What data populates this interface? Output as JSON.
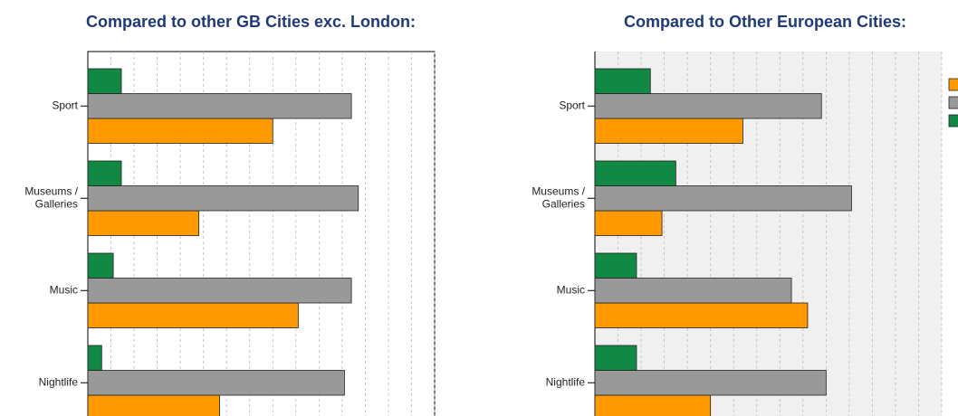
{
  "chart_data": [
    {
      "type": "bar",
      "orientation": "horizontal",
      "title": "Compared to other GB Cities exc. London:",
      "categories": [
        "Sport",
        [
          "Museums /",
          "Galleries"
        ],
        "Music",
        "Nightlife"
      ],
      "series": [
        {
          "color": "#ff9900",
          "values": [
            8.0,
            4.8,
            9.1,
            5.7
          ]
        },
        {
          "color": "#999999",
          "values": [
            11.4,
            11.7,
            11.4,
            11.1
          ]
        },
        {
          "color": "#118844",
          "values": [
            1.45,
            1.45,
            1.1,
            0.6
          ]
        }
      ],
      "xlim": [
        0,
        15
      ],
      "xticks": [
        0,
        1,
        2,
        3,
        4,
        5,
        6,
        7,
        8,
        9,
        10,
        11,
        12,
        13,
        14,
        15
      ],
      "grid": true,
      "background": "#ffffff"
    },
    {
      "type": "bar",
      "orientation": "horizontal",
      "title": "Compared to Other European Cities:",
      "categories": [
        "Sport",
        [
          "Museums /",
          "Galleries"
        ],
        "Music",
        "Nightlife"
      ],
      "series": [
        {
          "color": "#ff9900",
          "values": [
            6.4,
            2.9,
            9.2,
            5.0
          ]
        },
        {
          "color": "#999999",
          "values": [
            9.8,
            11.1,
            8.5,
            10.0
          ]
        },
        {
          "color": "#118844",
          "values": [
            2.4,
            3.5,
            1.8,
            1.8
          ]
        }
      ],
      "xlim": [
        0,
        15
      ],
      "xticks": [
        0,
        1,
        2,
        3,
        4,
        5,
        6,
        7,
        8,
        9,
        10,
        11,
        12,
        13,
        14,
        15
      ],
      "grid": true,
      "background": "#f0f0f0",
      "legend": "right"
    }
  ]
}
